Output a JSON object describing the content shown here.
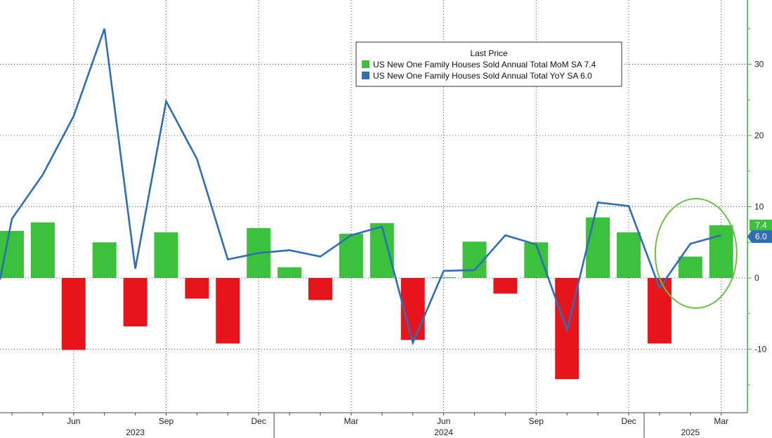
{
  "chart_data": {
    "type": "bar",
    "title": "",
    "xlabel": "",
    "ylabel": "",
    "ylim": [
      -19,
      39
    ],
    "yticks": [
      -10,
      0,
      10,
      20,
      30
    ],
    "months": [
      "2023-04",
      "2023-05",
      "2023-06",
      "2023-07",
      "2023-08",
      "2023-09",
      "2023-10",
      "2023-11",
      "2023-12",
      "2024-01",
      "2024-02",
      "2024-03",
      "2024-04",
      "2024-05",
      "2024-06",
      "2024-07",
      "2024-08",
      "2024-09",
      "2024-10",
      "2024-11",
      "2024-12",
      "2025-01",
      "2025-02",
      "2025-03"
    ],
    "x_tick_labels": [
      {
        "month": "2023-06",
        "label": "Jun"
      },
      {
        "month": "2023-09",
        "label": "Sep"
      },
      {
        "month": "2023-12",
        "label": "Dec"
      },
      {
        "month": "2024-03",
        "label": "Mar"
      },
      {
        "month": "2024-06",
        "label": "Jun"
      },
      {
        "month": "2024-09",
        "label": "Sep"
      },
      {
        "month": "2024-12",
        "label": "Dec"
      },
      {
        "month": "2025-03",
        "label": "Mar"
      }
    ],
    "year_labels": [
      {
        "month": "2023-08",
        "label": "2023"
      },
      {
        "month": "2024-06",
        "label": "2024"
      },
      {
        "month": "2025-02",
        "label": "2025"
      }
    ],
    "series": [
      {
        "name": "US New One Family Houses Sold Annual Total MoM SA",
        "type": "bar",
        "last_value": "7.4",
        "color": "#3cc13c",
        "negative_color": "#e8141b",
        "values": [
          6.6,
          7.8,
          -10.1,
          5.0,
          -6.8,
          6.4,
          -2.9,
          -9.2,
          7.0,
          1.5,
          -3.1,
          6.2,
          7.7,
          -8.7,
          0.1,
          5.1,
          -2.2,
          5.0,
          -14.2,
          8.5,
          6.4,
          -9.2,
          3.0,
          7.4
        ]
      },
      {
        "name": "US New One Family Houses Sold Annual Total YoY SA",
        "type": "line",
        "last_value": "6.0",
        "color": "#2e6eb5",
        "values": [
          8.3,
          14.5,
          22.7,
          35.0,
          1.3,
          24.8,
          16.7,
          2.6,
          3.5,
          3.9,
          3.0,
          6.0,
          7.2,
          -9.1,
          1.0,
          1.1,
          6.0,
          4.7,
          -7.3,
          10.6,
          10.1,
          -1.4,
          4.8,
          6.0
        ]
      }
    ],
    "legend": {
      "title": "Last Price",
      "position": "top-right"
    },
    "annotation": {
      "type": "ellipse",
      "color": "#6cc04a",
      "months": [
        "2025-01",
        "2025-03"
      ]
    },
    "grid": true
  }
}
